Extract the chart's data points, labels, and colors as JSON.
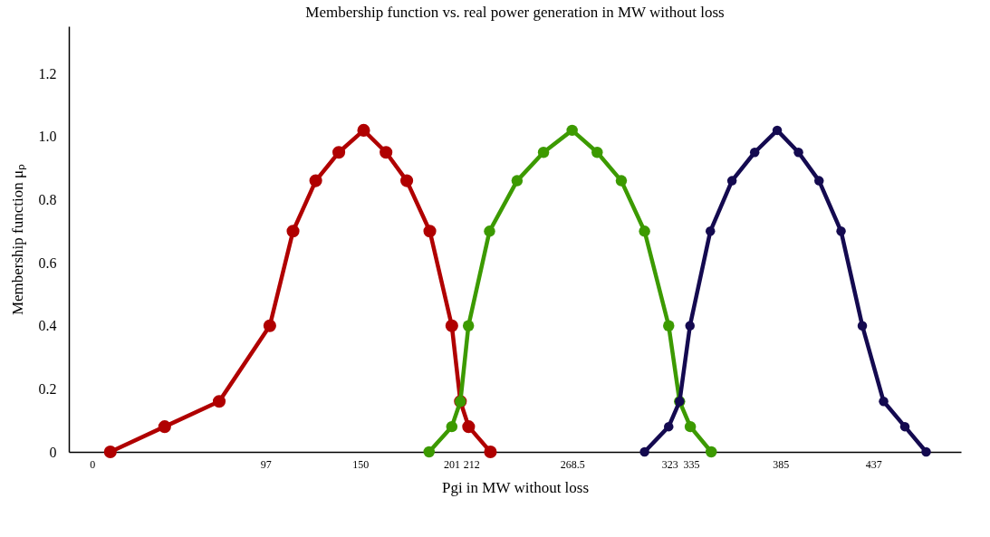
{
  "chart_data": {
    "type": "line",
    "title": "Membership function vs. real power generation in MW without loss",
    "xlabel": "Pgi in MW without loss",
    "ylabel": "Membership function μₚ",
    "xlim": [
      -13,
      486
    ],
    "xticks": [
      0,
      97,
      150,
      201,
      212,
      268.5,
      323,
      335,
      385,
      437
    ],
    "ylim": [
      0,
      1.35
    ],
    "yticks": [
      0,
      0.2,
      0.4,
      0.6,
      0.8,
      {
        "value": 1,
        "label": "1.0"
      },
      1.2
    ],
    "grid": false,
    "marker": "circle",
    "line_style": "solid",
    "series": [
      {
        "color": "#b00000",
        "x": [
          10.2,
          40.6,
          71.1,
          99.4,
          112.4,
          125.1,
          138.0,
          151.9,
          164.4,
          176.0,
          188.9,
          201.2,
          206.0,
          210.6,
          222.8
        ],
        "values": [
          0,
          0.08,
          0.16,
          0.4,
          0.7,
          0.86,
          0.95,
          1.02,
          0.95,
          0.86,
          0.7,
          0.4,
          0.16,
          0.08,
          0
        ]
      },
      {
        "color": "#3c9a00",
        "x": [
          188.5,
          201.2,
          206.0,
          210.5,
          222.3,
          237.7,
          252.5,
          268.5,
          282.5,
          296.0,
          309.0,
          322.5,
          328.6,
          334.6,
          346.3
        ],
        "values": [
          0,
          0.08,
          0.16,
          0.4,
          0.7,
          0.86,
          0.95,
          1.02,
          0.95,
          0.86,
          0.7,
          0.4,
          0.16,
          0.08,
          0
        ]
      },
      {
        "color": "#140a50",
        "x": [
          309.0,
          322.5,
          328.6,
          334.4,
          345.8,
          357.9,
          370.6,
          383.2,
          395.1,
          406.6,
          418.9,
          430.8,
          442.7,
          454.6,
          466.5
        ],
        "values": [
          0,
          0.08,
          0.16,
          0.4,
          0.7,
          0.86,
          0.95,
          1.02,
          0.95,
          0.86,
          0.7,
          0.4,
          0.16,
          0.08,
          0
        ]
      }
    ]
  }
}
